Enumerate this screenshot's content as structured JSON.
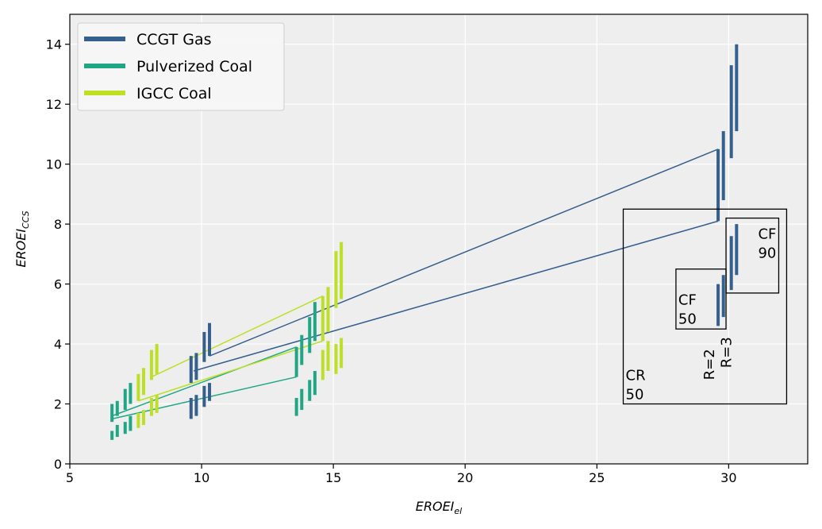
{
  "chart_data": {
    "type": "line",
    "title": "",
    "xlabel": {
      "main": "EROEI",
      "sub": "el"
    },
    "ylabel": {
      "main": "EROEI",
      "sub": "CCS"
    },
    "xlim": [
      5,
      33
    ],
    "ylim": [
      0,
      15
    ],
    "xticks": [
      5,
      10,
      15,
      20,
      25,
      30
    ],
    "yticks": [
      0,
      2,
      4,
      6,
      8,
      10,
      12,
      14
    ],
    "grid": true,
    "legend_position": "top-left",
    "colors": {
      "CCGT Gas": "#355f8d",
      "Pulverized Coal": "#21a685",
      "IGCC Coal": "#bddf26",
      "background": "#eeeeee",
      "grid": "#ffffff"
    },
    "legend": [
      "CCGT Gas",
      "Pulverized Coal",
      "IGCC Coal"
    ],
    "series": [
      {
        "name": "CCGT Gas",
        "color": "#355f8d",
        "lines": [
          [
            [
              9.7,
              3.1
            ],
            [
              29.6,
              8.1
            ]
          ],
          [
            [
              10.3,
              3.6
            ],
            [
              29.6,
              10.5
            ]
          ]
        ],
        "bars": [
          [
            9.6,
            1.5,
            2.2
          ],
          [
            9.8,
            1.6,
            2.3
          ],
          [
            10.1,
            1.9,
            2.6
          ],
          [
            10.3,
            2.1,
            2.7
          ],
          [
            9.6,
            2.7,
            3.6
          ],
          [
            9.8,
            2.8,
            3.7
          ],
          [
            10.1,
            3.4,
            4.4
          ],
          [
            10.3,
            3.6,
            4.7
          ],
          [
            29.6,
            4.6,
            6.0
          ],
          [
            29.8,
            4.9,
            6.3
          ],
          [
            30.1,
            5.8,
            7.6
          ],
          [
            30.3,
            6.3,
            8.0
          ],
          [
            29.6,
            8.1,
            10.5
          ],
          [
            29.8,
            8.8,
            11.1
          ],
          [
            30.1,
            10.2,
            13.3
          ],
          [
            30.3,
            11.1,
            14.0
          ]
        ]
      },
      {
        "name": "Pulverized Coal",
        "color": "#21a685",
        "lines": [
          [
            [
              6.6,
              1.5
            ],
            [
              13.6,
              2.9
            ]
          ],
          [
            [
              6.6,
              1.6
            ],
            [
              13.6,
              3.9
            ]
          ]
        ],
        "bars": [
          [
            6.6,
            0.8,
            1.1
          ],
          [
            6.8,
            0.9,
            1.3
          ],
          [
            7.1,
            1.0,
            1.4
          ],
          [
            7.3,
            1.1,
            1.6
          ],
          [
            6.6,
            1.4,
            2.0
          ],
          [
            6.8,
            1.6,
            2.1
          ],
          [
            7.1,
            1.8,
            2.5
          ],
          [
            7.3,
            2.0,
            2.7
          ],
          [
            13.6,
            1.6,
            2.2
          ],
          [
            13.8,
            1.8,
            2.5
          ],
          [
            14.1,
            2.1,
            2.8
          ],
          [
            14.3,
            2.3,
            3.1
          ],
          [
            13.6,
            2.9,
            3.9
          ],
          [
            13.8,
            3.3,
            4.3
          ],
          [
            14.1,
            3.7,
            4.9
          ],
          [
            14.3,
            4.1,
            5.4
          ]
        ]
      },
      {
        "name": "IGCC Coal",
        "color": "#bddf26",
        "lines": [
          [
            [
              7.6,
              2.1
            ],
            [
              14.6,
              4.1
            ]
          ],
          [
            [
              8.1,
              2.9
            ],
            [
              14.6,
              5.6
            ]
          ]
        ],
        "bars": [
          [
            7.6,
            1.2,
            1.7
          ],
          [
            7.8,
            1.3,
            1.8
          ],
          [
            8.1,
            1.6,
            2.2
          ],
          [
            8.3,
            1.7,
            2.3
          ],
          [
            7.6,
            2.1,
            3.0
          ],
          [
            7.8,
            2.3,
            3.2
          ],
          [
            8.1,
            2.8,
            3.8
          ],
          [
            8.3,
            3.0,
            4.0
          ],
          [
            14.6,
            2.8,
            3.8
          ],
          [
            14.8,
            3.1,
            4.1
          ],
          [
            15.1,
            3.0,
            4.0
          ],
          [
            15.3,
            3.2,
            4.2
          ],
          [
            14.6,
            4.1,
            5.6
          ],
          [
            14.8,
            4.4,
            5.9
          ],
          [
            15.1,
            5.2,
            7.1
          ],
          [
            15.3,
            5.5,
            7.4
          ]
        ]
      }
    ],
    "boxes": [
      {
        "name": "cr-50",
        "x0": 26.0,
        "y0": 2.0,
        "x1": 32.2,
        "y1": 8.5,
        "label": [
          "CR",
          "50"
        ]
      },
      {
        "name": "cf-50",
        "x0": 28.0,
        "y0": 4.5,
        "x1": 29.9,
        "y1": 6.5,
        "label": [
          "CF",
          "50"
        ]
      },
      {
        "name": "cf-90",
        "x0": 29.9,
        "y0": 5.7,
        "x1": 31.9,
        "y1": 8.2,
        "label": [
          "CF",
          "90"
        ]
      }
    ],
    "rotated_labels": [
      {
        "name": "r2",
        "text": "R=2",
        "x": 29.45,
        "y": 2.8
      },
      {
        "name": "r3",
        "text": "R=3",
        "x": 30.1,
        "y": 3.2
      }
    ]
  }
}
